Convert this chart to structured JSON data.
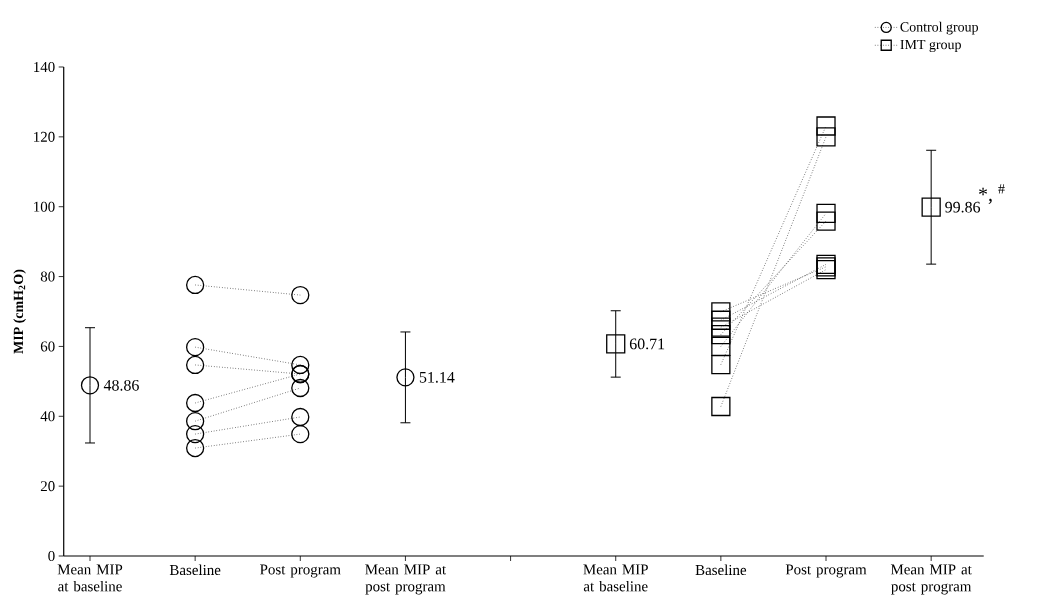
{
  "chart_data": {
    "type": "line",
    "ylabel": "MIP (cmH$_{2}$O)",
    "categories": [
      "Mean MIP at baseline",
      "Baseline",
      "Post program",
      "Mean MIP at post program",
      null,
      "Mean MIP at baseline",
      "Baseline",
      "Post program",
      "Mean MIP at post program"
    ],
    "ylim": [
      0,
      140
    ],
    "yticks": [
      0,
      20,
      40,
      60,
      80,
      100,
      120,
      140
    ],
    "line_style": "dotted",
    "legend": "top right",
    "grid": false,
    "annotations": [
      "*, $^{#}$"
    ],
    "series": [
      {
        "name": "Control group",
        "marker": "circle",
        "color": "#000000",
        "values": [
          null,
          77.6,
          74.7,
          null,
          null,
          null,
          null,
          null,
          null
        ]
      },
      {
        "marker": "circle",
        "color": "#000000",
        "values": [
          null,
          59.8,
          54.7,
          null,
          null,
          null,
          null,
          null,
          null
        ]
      },
      {
        "marker": "circle",
        "color": "#000000",
        "values": [
          null,
          54.7,
          52.1,
          null,
          null,
          null,
          null,
          null,
          null
        ]
      },
      {
        "marker": "circle",
        "color": "#000000",
        "values": [
          null,
          43.8,
          52.1,
          null,
          null,
          null,
          null,
          null,
          null
        ]
      },
      {
        "marker": "circle",
        "color": "#000000",
        "values": [
          null,
          38.6,
          48.1,
          null,
          null,
          null,
          null,
          null,
          null
        ]
      },
      {
        "marker": "circle",
        "color": "#000000",
        "values": [
          null,
          34.9,
          39.8,
          null,
          null,
          null,
          null,
          null,
          null
        ]
      },
      {
        "marker": "circle",
        "color": "#000000",
        "values": [
          null,
          30.9,
          34.9,
          null,
          null,
          null,
          null,
          null,
          null
        ]
      },
      {
        "type": "scatter",
        "marker": "circle",
        "color": "#000000",
        "values": [
          48.86,
          null,
          null,
          51.14,
          null,
          null,
          null,
          null,
          null
        ],
        "errors": [
          16.5,
          null,
          null,
          13,
          null,
          null,
          null,
          null,
          null
        ],
        "value_labels": [
          "48.86",
          null,
          null,
          "51.14",
          null,
          null,
          null,
          null,
          null
        ]
      },
      {
        "name": "IMT group",
        "marker": "square",
        "color": "#000000",
        "values": [
          null,
          null,
          null,
          null,
          null,
          null,
          69.9,
          82.8,
          null
        ]
      },
      {
        "marker": "square",
        "color": "#000000",
        "values": [
          null,
          null,
          null,
          null,
          null,
          null,
          67.5,
          83.5,
          null
        ]
      },
      {
        "marker": "square",
        "color": "#000000",
        "values": [
          null,
          null,
          null,
          null,
          null,
          null,
          65.5,
          82.0,
          null
        ]
      },
      {
        "marker": "square",
        "color": "#000000",
        "values": [
          null,
          null,
          null,
          null,
          null,
          null,
          63.4,
          95.9,
          null
        ]
      },
      {
        "marker": "square",
        "color": "#000000",
        "values": [
          null,
          null,
          null,
          null,
          null,
          null,
          60.0,
          98.1,
          null
        ]
      },
      {
        "marker": "square",
        "color": "#000000",
        "values": [
          null,
          null,
          null,
          null,
          null,
          null,
          54.8,
          123.1,
          null
        ]
      },
      {
        "marker": "square",
        "color": "#000000",
        "values": [
          null,
          null,
          null,
          null,
          null,
          null,
          42.8,
          120.0,
          null
        ]
      },
      {
        "type": "scatter",
        "marker": "square",
        "color": "#000000",
        "values": [
          null,
          null,
          null,
          null,
          null,
          60.71,
          null,
          null,
          99.86
        ],
        "errors": [
          null,
          null,
          null,
          null,
          null,
          9.5,
          null,
          null,
          16.3
        ],
        "value_labels": [
          null,
          null,
          null,
          null,
          null,
          "60.71",
          null,
          null,
          "99.86"
        ]
      }
    ]
  }
}
